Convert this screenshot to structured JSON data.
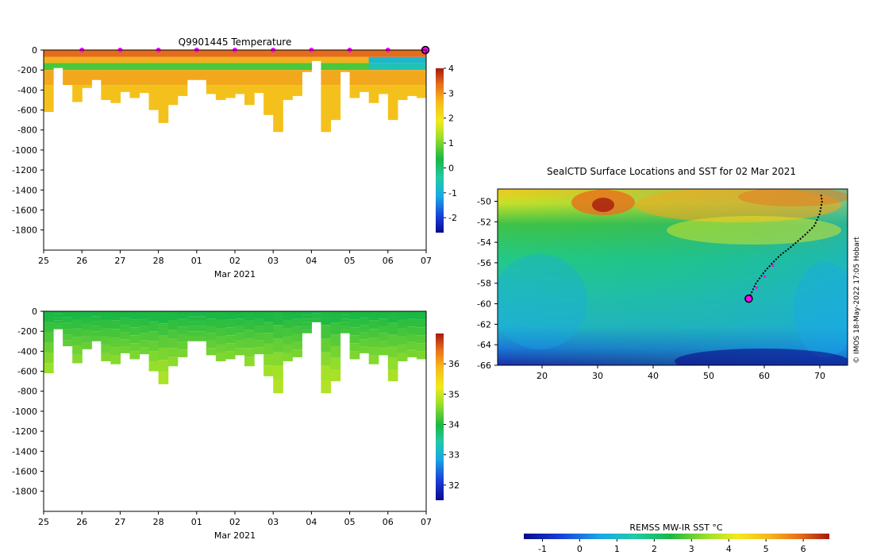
{
  "chart_data": [
    {
      "type": "heatmap",
      "id": "temperature_section",
      "title": "Q9901445  Temperature",
      "xlabel": "Mar 2021",
      "ylabel": "",
      "x_ticks": [
        "25",
        "26",
        "27",
        "28",
        "01",
        "02",
        "03",
        "04",
        "05",
        "06",
        "07"
      ],
      "x_range_days": [
        0,
        10
      ],
      "y_ticks": [
        0,
        -200,
        -400,
        -600,
        -800,
        -1000,
        -1200,
        -1400,
        -1600,
        -1800
      ],
      "ylim": [
        -2000,
        0
      ],
      "colorbar": {
        "ticks": [
          -2,
          -1,
          0,
          1,
          2,
          3,
          4
        ],
        "range": [
          -2.6,
          4
        ]
      },
      "profile_days": [
        0,
        0.25,
        0.5,
        0.75,
        1.0,
        1.25,
        1.5,
        1.75,
        2.0,
        2.25,
        2.5,
        2.75,
        3.0,
        3.25,
        3.5,
        3.75,
        4.0,
        4.25,
        4.5,
        4.75,
        5.0,
        5.25,
        5.5,
        5.75,
        6.0,
        6.25,
        6.5,
        6.75,
        7.0,
        7.25,
        7.5,
        7.75,
        8.0,
        8.25,
        8.5,
        8.75,
        9.0,
        9.25,
        9.5,
        9.75
      ],
      "profile_depths": [
        620,
        180,
        350,
        520,
        380,
        300,
        500,
        530,
        420,
        480,
        430,
        600,
        730,
        550,
        460,
        300,
        300,
        440,
        500,
        480,
        440,
        550,
        430,
        650,
        820,
        500,
        460,
        220,
        110,
        820,
        700,
        220,
        480,
        420,
        530,
        440,
        700,
        500,
        460,
        480
      ],
      "surface_temp": 3.3,
      "subsurface_temp": 2.6,
      "min_layer_temp": 0.6,
      "deep_temp": 2.4,
      "cold_pool_start_day": 8.3,
      "cold_pool_temp": -0.8,
      "marker_days": [
        1,
        2,
        3,
        4,
        5,
        6,
        7,
        8,
        9
      ],
      "current_position_day": 10
    },
    {
      "type": "heatmap",
      "id": "salinity_section",
      "title": "",
      "xlabel": "Mar 2021",
      "ylabel": "",
      "x_ticks": [
        "25",
        "26",
        "27",
        "28",
        "01",
        "02",
        "03",
        "04",
        "05",
        "06",
        "07"
      ],
      "y_ticks": [
        0,
        -200,
        -400,
        -600,
        -800,
        -1000,
        -1200,
        -1400,
        -1600,
        -1800
      ],
      "ylim": [
        -2000,
        0
      ],
      "colorbar": {
        "ticks": [
          32,
          33,
          34,
          35,
          36
        ],
        "range": [
          31.5,
          37
        ]
      },
      "surface_value": 33.9,
      "deep_value": 34.7
    },
    {
      "type": "heatmap",
      "id": "sst_map",
      "title": "SealCTD Surface Locations and SST for 02 Mar 2021",
      "xlabel": "",
      "ylabel": "",
      "x_ticks": [
        20,
        30,
        40,
        50,
        60,
        70
      ],
      "xlim": [
        12,
        75
      ],
      "y_ticks": [
        -50,
        -52,
        -54,
        -56,
        -58,
        -60,
        -62,
        -64,
        -66
      ],
      "ylim": [
        -66,
        -48.8
      ],
      "colorbar_title": "REMSS MW-IR SST °C",
      "colorbar": {
        "ticks": [
          -1,
          0,
          1,
          2,
          3,
          4,
          5,
          6
        ],
        "range": [
          -1.5,
          6.7
        ]
      },
      "track_lon": [
        57.2,
        58.5,
        60.0,
        61.5,
        63.0,
        64.5,
        66.0,
        67.5,
        69.0,
        70.0,
        70.4,
        70.2
      ],
      "track_lat": [
        -59.5,
        -58.0,
        -56.9,
        -56.0,
        -55.2,
        -54.6,
        -53.9,
        -53.2,
        -52.4,
        -51.2,
        -50.0,
        -49.3
      ],
      "current_position": {
        "lon": 57.2,
        "lat": -59.5
      },
      "credit": "© IMOS 18-May-2022 17:05 Hobart"
    }
  ]
}
